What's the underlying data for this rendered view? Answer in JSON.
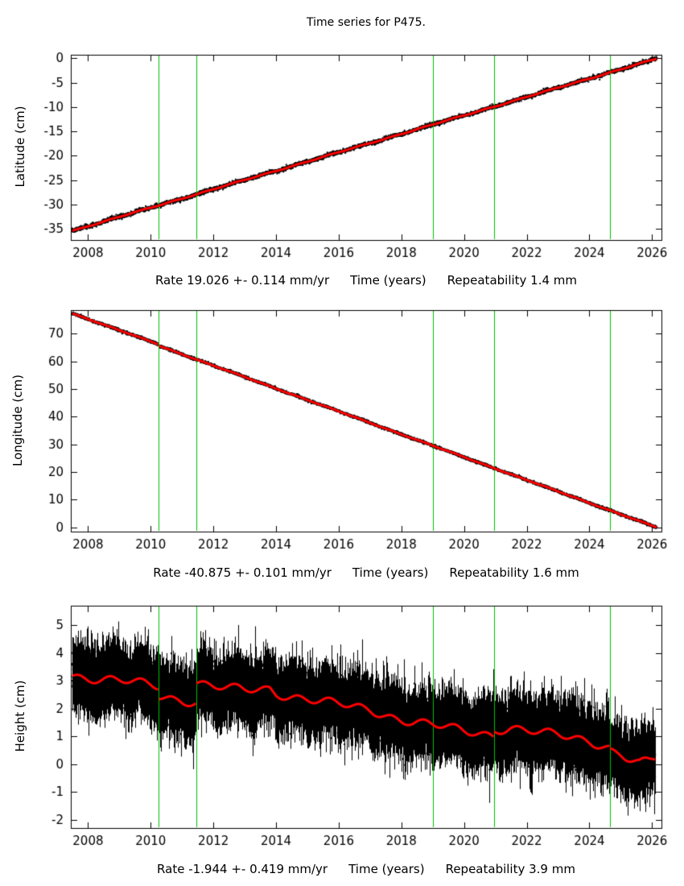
{
  "title": "Time series for P475.",
  "background_color": "#ffffff",
  "chart_data": [
    {
      "type": "scatter",
      "component": "latitude",
      "ylabel": "Latitude (cm)",
      "xlabel": "Time (years)",
      "rate_label": "Rate 19.026 +- 0.114 mm/yr",
      "repeatability_label": "Repeatability 1.4 mm",
      "xlim": [
        2007.45,
        2026.3
      ],
      "ylim": [
        -37.3,
        0.7
      ],
      "xticks": [
        2008,
        2010,
        2012,
        2014,
        2016,
        2018,
        2020,
        2022,
        2024,
        2026
      ],
      "yticks": [
        0,
        -5,
        -10,
        -15,
        -20,
        -25,
        -30,
        -35
      ],
      "event_lines_x": [
        2010.25,
        2011.45,
        2019.0,
        2020.95,
        2024.65
      ],
      "trend_segments": [
        [
          [
            2007.5,
            -35.4
          ],
          [
            2026.15,
            -0.1
          ]
        ]
      ],
      "points_sigma_cm": 0.18,
      "seasonal_amp_cm": 0.07,
      "n_points": 6700,
      "error_bars": false,
      "colors": {
        "points": "#000000",
        "trend": "#ff0000",
        "events": "#00c000"
      }
    },
    {
      "type": "scatter",
      "component": "longitude",
      "ylabel": "Longitude (cm)",
      "xlabel": "Time (years)",
      "rate_label": "Rate -40.875 +- 0.101 mm/yr",
      "repeatability_label": "Repeatability 1.6 mm",
      "xlim": [
        2007.45,
        2026.3
      ],
      "ylim": [
        -1.5,
        78.5
      ],
      "xticks": [
        2008,
        2010,
        2012,
        2014,
        2016,
        2018,
        2020,
        2022,
        2024,
        2026
      ],
      "yticks": [
        0,
        10,
        20,
        30,
        40,
        50,
        60,
        70
      ],
      "event_lines_x": [
        2010.25,
        2011.45,
        2019.0,
        2020.95,
        2024.65
      ],
      "trend_segments": [
        [
          [
            2007.5,
            77.3
          ],
          [
            2010.24,
            66.2
          ]
        ],
        [
          [
            2010.27,
            65.6
          ],
          [
            2026.15,
            0.0
          ]
        ]
      ],
      "points_sigma_cm": 0.22,
      "seasonal_amp_cm": 0.08,
      "n_points": 6700,
      "error_bars": false,
      "colors": {
        "points": "#000000",
        "trend": "#ff0000",
        "events": "#00c000"
      }
    },
    {
      "type": "scatter",
      "component": "height",
      "ylabel": "Height (cm)",
      "xlabel": "Time (years)",
      "rate_label": "Rate -1.944 +- 0.419 mm/yr",
      "repeatability_label": "Repeatability 3.9 mm",
      "xlim": [
        2007.45,
        2026.3
      ],
      "ylim": [
        -2.3,
        5.7
      ],
      "xticks": [
        2008,
        2010,
        2012,
        2014,
        2016,
        2018,
        2020,
        2022,
        2024,
        2026
      ],
      "yticks": [
        -2,
        -1,
        0,
        1,
        2,
        3,
        4,
        5
      ],
      "event_lines_x": [
        2010.25,
        2011.45,
        2019.0,
        2020.95,
        2024.65
      ],
      "trend_segments": [
        [
          [
            2007.5,
            3.2
          ],
          [
            2008,
            3.1
          ],
          [
            2009,
            3.0
          ],
          [
            2010,
            2.85
          ],
          [
            2010.24,
            2.8
          ]
        ],
        [
          [
            2010.27,
            2.45
          ],
          [
            2011,
            2.3
          ],
          [
            2011.44,
            2.25
          ]
        ],
        [
          [
            2011.46,
            2.95
          ],
          [
            2012,
            2.8
          ],
          [
            2013,
            2.65
          ],
          [
            2013.8,
            2.7
          ],
          [
            2014,
            2.55
          ],
          [
            2015,
            2.35
          ],
          [
            2016,
            2.15
          ],
          [
            2017,
            1.95
          ],
          [
            2018,
            1.6
          ],
          [
            2019,
            1.4
          ],
          [
            2020,
            1.2
          ],
          [
            2020.94,
            1.05
          ]
        ],
        [
          [
            2020.96,
            1.25
          ],
          [
            2021.5,
            1.3
          ],
          [
            2022,
            1.2
          ],
          [
            2022.5,
            1.1
          ],
          [
            2023,
            1.05
          ],
          [
            2023.5,
            0.95
          ],
          [
            2024,
            0.85
          ],
          [
            2024.64,
            0.6
          ]
        ],
        [
          [
            2024.66,
            0.5
          ],
          [
            2025,
            0.35
          ],
          [
            2025.3,
            0.15
          ],
          [
            2025.6,
            0.0
          ],
          [
            2025.9,
            0.1
          ],
          [
            2026.1,
            0.2
          ]
        ]
      ],
      "points_sigma_cm": 0.42,
      "seasonal_amp_cm": 0.12,
      "n_points": 6700,
      "error_bars": true,
      "error_bar_range_cm": [
        0.45,
        0.85
      ],
      "colors": {
        "points": "#000000",
        "trend": "#ff0000",
        "events": "#00c000"
      }
    }
  ]
}
